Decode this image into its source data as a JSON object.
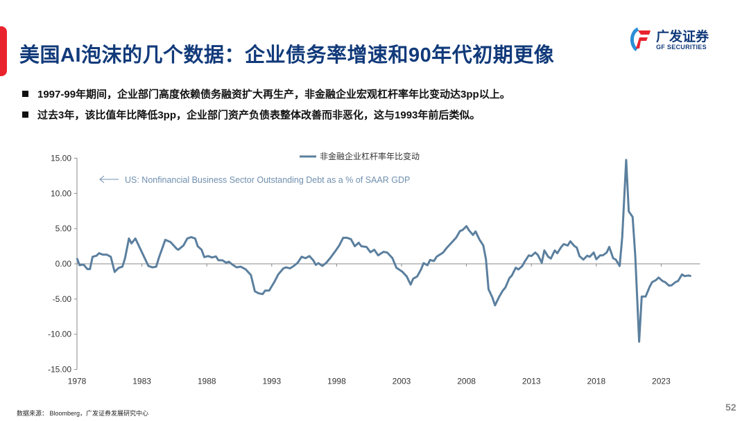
{
  "header": {
    "title": "美国AI泡沫的几个数据：企业债务率增速和90年代初期更像",
    "logo_cn": "广发证券",
    "logo_en": "GF SECURITIES"
  },
  "bullets": [
    "1997-99年期间，企业部门高度依赖债务融资扩大再生产，非金融企业宏观杠杆率年比变动达3pp以上。",
    "过去3年，该比值年比降低3pp，企业部门资产负债表整体改善而非恶化，这与1993年前后类似。"
  ],
  "footer": {
    "source": "数据来源： Bloomberg，广发证券发展研究中心",
    "page_number": "52"
  },
  "colors": {
    "title": "#113a7a",
    "accent_red": "#e8232e",
    "series": "#5b7f9e",
    "annotation": "#6f8fae"
  },
  "chart_data": {
    "type": "line",
    "legend": [
      "非金融企业杠杆率年比变动"
    ],
    "legend_placement": "top-center",
    "annotation": "US: Nonfinancial Business Sector Outstanding Debt as a % of SAAR GDP",
    "annotation_icon": "arrow-left-icon",
    "xlim": [
      1978,
      2026
    ],
    "ylim": [
      -15,
      15
    ],
    "x_ticks": [
      "1978",
      "1983",
      "1988",
      "1993",
      "1998",
      "2003",
      "2008",
      "2013",
      "2018",
      "2023"
    ],
    "y_ticks": [
      "15.00",
      "10.00",
      "5.00",
      "0.00",
      "-5.00",
      "-10.00",
      "-15.00"
    ],
    "grid": false,
    "series": [
      {
        "name": "非金融企业杠杆率年比变动",
        "x": [
          1978.0,
          1978.2,
          1978.5,
          1978.8,
          1979.0,
          1979.2,
          1979.5,
          1979.7,
          1980.0,
          1980.3,
          1980.6,
          1980.9,
          1981.2,
          1981.5,
          1981.7,
          1982.0,
          1982.2,
          1982.5,
          1983.5,
          1983.8,
          1984.1,
          1984.3,
          1984.8,
          1985.2,
          1985.7,
          1985.8,
          1986.2,
          1986.5,
          1986.8,
          1987.1,
          1987.3,
          1987.6,
          1987.8,
          1988.1,
          1988.4,
          1988.7,
          1988.9,
          1989.2,
          1989.5,
          1989.7,
          1990.0,
          1990.3,
          1990.6,
          1991.0,
          1991.4,
          1991.7,
          1992.0,
          1992.3,
          1992.5,
          1992.8,
          1993.2,
          1993.5,
          1993.9,
          1994.1,
          1994.4,
          1994.7,
          1995.0,
          1995.3,
          1995.6,
          1995.9,
          1996.2,
          1996.4,
          1996.6,
          1996.9,
          1997.2,
          1997.5,
          1997.9,
          1998.2,
          1998.5,
          1998.8,
          1999.1,
          1999.4,
          1999.7,
          1999.9,
          2000.3,
          2000.6,
          2000.9,
          2001.2,
          2001.6,
          2001.9,
          2002.3,
          2002.6,
          2003.05,
          2003.4,
          2003.7,
          2003.9,
          2004.2,
          2004.5,
          2004.7,
          2005.0,
          2005.2,
          2005.5,
          2005.7,
          2006.2,
          2006.5,
          2007.0,
          2007.2,
          2007.5,
          2007.7,
          2008.0,
          2008.2,
          2008.5,
          2008.7,
          2009.0,
          2009.3,
          2009.5,
          2009.7,
          2010.0,
          2010.2,
          2010.5,
          2010.8,
          2011.0,
          2011.3,
          2011.5,
          2011.8,
          2012.0,
          2012.3,
          2012.5,
          2012.8,
          2013.0,
          2013.3,
          2013.5,
          2013.8,
          2014.0,
          2014.3,
          2014.5,
          2014.8,
          2015.0,
          2015.3,
          2015.5,
          2015.8,
          2016.0,
          2016.3,
          2016.5,
          2016.7,
          2017.0,
          2017.3,
          2017.5,
          2017.8,
          2018.0,
          2018.3,
          2018.5,
          2018.8,
          2019.0,
          2019.3,
          2019.5,
          2019.8,
          2020.0,
          2020.3,
          2020.5,
          2020.8,
          2021.0,
          2021.3,
          2021.5,
          2021.8,
          2022.1,
          2022.3,
          2022.6,
          2022.8,
          2023.1,
          2023.3,
          2023.6,
          2023.8,
          2024.1,
          2024.3,
          2024.6,
          2024.8,
          2025.1,
          2025.3
        ],
        "values": [
          0.8,
          -0.2,
          -0.1,
          -0.75,
          -0.75,
          1.0,
          1.15,
          1.5,
          1.3,
          1.3,
          1.0,
          -1.15,
          -0.6,
          -0.4,
          0.8,
          3.6,
          2.9,
          3.6,
          -0.3,
          -0.5,
          -0.4,
          0.8,
          3.4,
          3.1,
          2.1,
          2.0,
          2.6,
          3.6,
          3.8,
          3.6,
          2.5,
          2.0,
          0.95,
          1.1,
          0.9,
          1.05,
          0.5,
          0.5,
          0.15,
          0.3,
          -0.15,
          -0.5,
          -0.4,
          -0.8,
          -1.6,
          -3.9,
          -4.2,
          -4.3,
          -3.8,
          -3.8,
          -2.6,
          -1.5,
          -0.65,
          -0.5,
          -0.65,
          -0.3,
          0.15,
          1.0,
          0.8,
          1.1,
          0.5,
          -0.15,
          0.1,
          -0.3,
          0.15,
          0.8,
          1.8,
          2.6,
          3.7,
          3.7,
          3.5,
          2.5,
          3.0,
          2.5,
          2.4,
          1.65,
          2.0,
          1.2,
          1.7,
          1.6,
          0.8,
          -0.55,
          -1.1,
          -1.8,
          -2.95,
          -2.1,
          -1.8,
          -0.8,
          0.1,
          -0.2,
          0.55,
          0.4,
          1.0,
          1.6,
          2.3,
          3.3,
          3.7,
          4.65,
          4.8,
          5.35,
          4.75,
          4.1,
          4.6,
          3.45,
          2.6,
          0.65,
          -3.6,
          -4.8,
          -5.9,
          -4.75,
          -3.8,
          -3.35,
          -2.05,
          -1.65,
          -0.55,
          -0.8,
          -0.3,
          0.35,
          1.2,
          1.1,
          1.6,
          1.25,
          0.15,
          1.9,
          1.0,
          0.75,
          1.9,
          1.5,
          2.4,
          2.8,
          2.6,
          3.2,
          2.55,
          2.3,
          1.1,
          0.6,
          1.15,
          1.0,
          1.6,
          0.65,
          1.2,
          1.2,
          1.6,
          2.4,
          0.8,
          0.6,
          -0.3,
          3.8,
          14.75,
          7.45,
          6.65,
          1.15,
          -11.05,
          -4.65,
          -4.65,
          -3.3,
          -2.6,
          -2.3,
          -1.95,
          -2.45,
          -2.6,
          -3.1,
          -3.05,
          -2.6,
          -2.45,
          -1.5,
          -1.75,
          -1.65,
          -1.75
        ]
      }
    ]
  }
}
